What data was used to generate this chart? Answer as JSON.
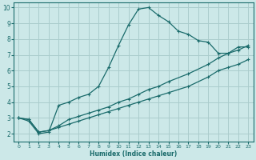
{
  "xlabel": "Humidex (Indice chaleur)",
  "bg_color": "#cce8e8",
  "grid_color": "#aacccc",
  "line_color": "#1a6b6b",
  "xlim": [
    -0.5,
    23.5
  ],
  "ylim": [
    1.5,
    10.3
  ],
  "xticks": [
    0,
    1,
    2,
    3,
    4,
    5,
    6,
    7,
    8,
    9,
    10,
    11,
    12,
    13,
    14,
    15,
    16,
    17,
    18,
    19,
    20,
    21,
    22,
    23
  ],
  "yticks": [
    2,
    3,
    4,
    5,
    6,
    7,
    8,
    9,
    10
  ],
  "curve1_x": [
    0,
    1,
    2,
    3,
    4,
    5,
    6,
    7,
    8,
    9,
    10,
    11,
    12,
    13,
    14,
    15,
    16,
    17,
    18,
    19,
    20,
    21,
    22,
    23
  ],
  "curve1_y": [
    3.0,
    2.8,
    2.0,
    2.1,
    3.8,
    4.0,
    4.3,
    4.5,
    5.0,
    6.2,
    7.6,
    8.9,
    9.9,
    10.0,
    9.5,
    9.1,
    8.5,
    8.3,
    7.9,
    7.8,
    7.1,
    7.1,
    7.5,
    7.5
  ],
  "curve2_x": [
    0,
    1,
    2,
    3,
    4,
    5,
    6,
    7,
    8,
    9,
    10,
    11,
    12,
    13,
    14,
    15,
    17,
    19,
    20,
    21,
    22,
    23
  ],
  "curve2_y": [
    3.0,
    2.9,
    2.1,
    2.2,
    2.5,
    2.9,
    3.1,
    3.3,
    3.5,
    3.7,
    4.0,
    4.2,
    4.5,
    4.8,
    5.0,
    5.3,
    5.8,
    6.4,
    6.8,
    7.1,
    7.3,
    7.6
  ],
  "curve3_x": [
    0,
    1,
    2,
    3,
    4,
    5,
    6,
    7,
    8,
    9,
    10,
    11,
    12,
    13,
    14,
    15,
    17,
    19,
    20,
    21,
    22,
    23
  ],
  "curve3_y": [
    3.0,
    2.9,
    2.1,
    2.2,
    2.4,
    2.6,
    2.8,
    3.0,
    3.2,
    3.4,
    3.6,
    3.8,
    4.0,
    4.2,
    4.4,
    4.6,
    5.0,
    5.6,
    6.0,
    6.2,
    6.4,
    6.7
  ]
}
